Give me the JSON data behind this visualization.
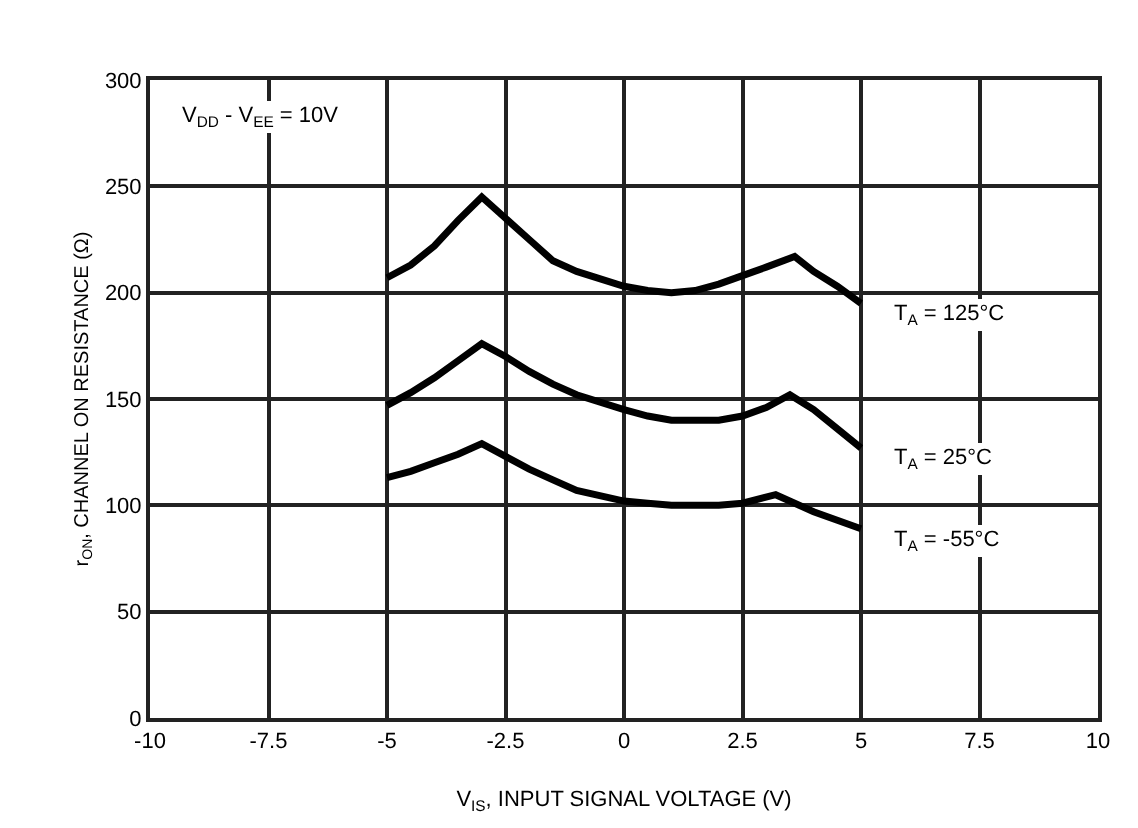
{
  "chart_data": {
    "type": "line",
    "xlabel": "V$_{IS}$, INPUT SIGNAL VOLTAGE (V)",
    "ylabel": "r$_{ON}$, CHANNEL ON RESISTANCE (Ω)",
    "annotations": [
      "V$_{DD}$ - V$_{EE}$ = 10V"
    ],
    "series": [
      {
        "name": "T$_{A}$ = 125°C",
        "color": "#000000",
        "x": [
          -5,
          -4.5,
          -4,
          -3.5,
          -3,
          -2.5,
          -2,
          -1.5,
          -1,
          0,
          0.5,
          1,
          1.5,
          2,
          2.5,
          3,
          3.6,
          4,
          4.5,
          5
        ],
        "values": [
          207,
          213,
          222,
          234,
          245,
          235,
          225,
          215,
          210,
          203,
          201,
          200,
          201,
          204,
          208,
          212,
          217,
          210,
          203,
          195
        ]
      },
      {
        "name": "T$_{A}$ = 25°C",
        "color": "#000000",
        "x": [
          -5,
          -4.5,
          -4,
          -3.5,
          -3,
          -2.5,
          -2,
          -1.5,
          -1,
          0,
          0.5,
          1,
          1.5,
          2,
          2.5,
          3,
          3.5,
          4,
          4.5,
          5
        ],
        "values": [
          147,
          153,
          160,
          168,
          176,
          170,
          163,
          157,
          152,
          145,
          142,
          140,
          140,
          140,
          142,
          146,
          152,
          145,
          136,
          127
        ]
      },
      {
        "name": "T$_{A}$ = -55°C",
        "color": "#000000",
        "x": [
          -5,
          -4.5,
          -4,
          -3.5,
          -3,
          -2.5,
          -2,
          -1.5,
          -1,
          0,
          0.5,
          1,
          1.5,
          2,
          2.5,
          3.2,
          4,
          4.5,
          5
        ],
        "values": [
          113,
          116,
          120,
          124,
          129,
          123,
          117,
          112,
          107,
          102,
          101,
          100,
          100,
          100,
          101,
          105,
          97,
          93,
          89
        ]
      }
    ],
    "xlim": [
      -10,
      10
    ],
    "xticks": [
      -10,
      -7.5,
      -5,
      -2.5,
      0,
      2.5,
      5,
      7.5,
      10
    ],
    "ylim": [
      0,
      300
    ],
    "yticks": [
      0,
      50,
      100,
      150,
      200,
      250,
      300
    ],
    "grid": true,
    "legend": false,
    "marker": "none",
    "line_style": "solid"
  }
}
